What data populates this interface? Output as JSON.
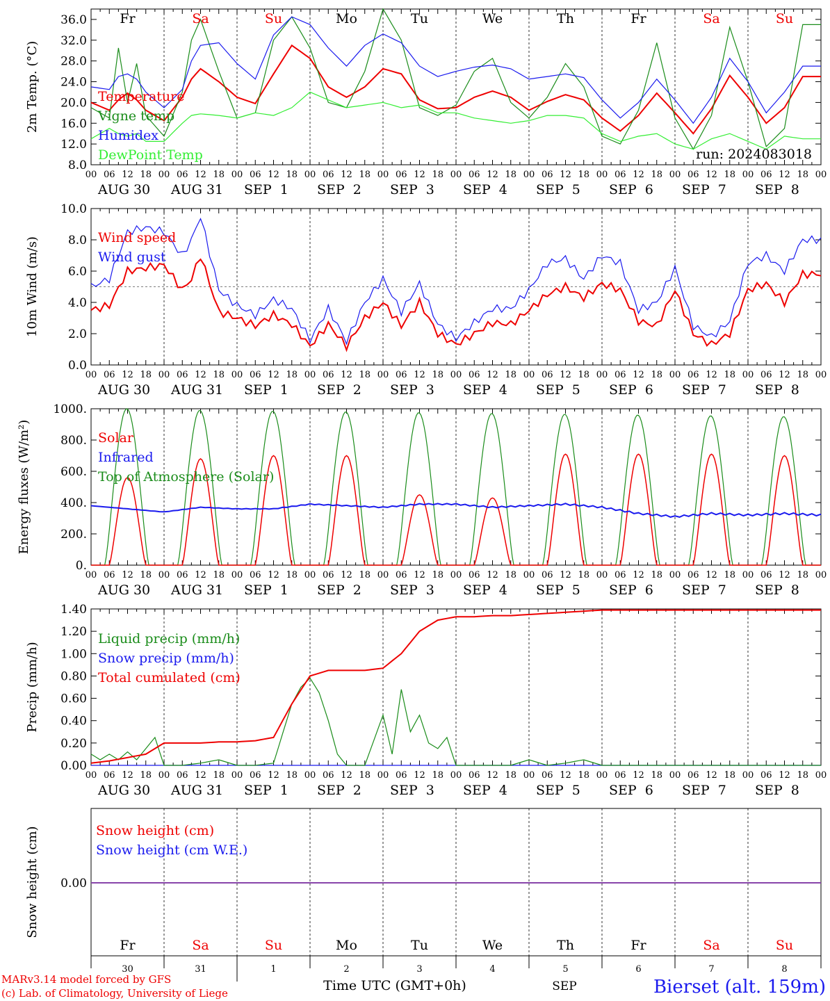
{
  "meta": {
    "model_line1": "MARv3.14 model forced by GFS",
    "model_line2": "(c) Lab. of Climatology, University of Liege",
    "xaxis_title": "Time UTC (GMT+0h)",
    "month_label": "SEP",
    "station": "Bierset (alt. 159m)"
  },
  "colors": {
    "red": "#ee0000",
    "green": "#1a8c1a",
    "blue": "#1a1aee",
    "lightgreen": "#33ee33",
    "purple": "#8844aa",
    "black": "#000000"
  },
  "hour_ticks": [
    "00",
    "06",
    "12",
    "18"
  ],
  "day_labels": [
    "AUG 30",
    "AUG 31",
    "SEP  1",
    "SEP  2",
    "SEP  3",
    "SEP  4",
    "SEP  5",
    "SEP  6",
    "SEP  7",
    "SEP  8"
  ],
  "weekdays": [
    {
      "name": "Fr",
      "weekend": false
    },
    {
      "name": "Sa",
      "weekend": true
    },
    {
      "name": "Su",
      "weekend": true
    },
    {
      "name": "Mo",
      "weekend": false
    },
    {
      "name": "Tu",
      "weekend": false
    },
    {
      "name": "We",
      "weekend": false
    },
    {
      "name": "Th",
      "weekend": false
    },
    {
      "name": "Fr",
      "weekend": false
    },
    {
      "name": "Sa",
      "weekend": true
    },
    {
      "name": "Su",
      "weekend": true
    }
  ],
  "day_numbers": [
    "30",
    "31",
    "1",
    "2",
    "3",
    "4",
    "5",
    "6",
    "7",
    "8"
  ],
  "chart_data": [
    {
      "type": "line",
      "ylabel": "2m Temp. (°C)",
      "ylim": [
        8,
        38
      ],
      "yticks": [
        "36.0",
        "32.0",
        "28.0",
        "24.0",
        "20.0",
        "16.0",
        "12.0",
        "8.0"
      ],
      "run_label": "run: 2024083018",
      "x_hours": [
        0,
        6,
        9,
        12,
        15,
        18,
        24,
        30,
        33,
        36,
        42,
        48,
        54,
        60,
        66,
        72,
        78,
        84,
        90,
        96,
        102,
        108,
        114,
        120,
        126,
        132,
        138,
        144,
        150,
        156,
        162,
        168,
        174,
        180,
        186,
        192,
        198,
        204,
        210,
        216,
        222,
        228,
        234
      ],
      "series": [
        {
          "name": "Temperature",
          "color": "red",
          "values": [
            20.0,
            18.5,
            20.5,
            21.8,
            20.5,
            18.5,
            16.5,
            21.0,
            24.5,
            26.5,
            24.0,
            21.0,
            19.8,
            25.5,
            31.0,
            28.5,
            23.0,
            21.0,
            23.0,
            26.5,
            25.5,
            20.5,
            18.8,
            19.0,
            21.0,
            22.2,
            21.0,
            18.5,
            20.2,
            21.5,
            20.5,
            17.0,
            14.5,
            17.5,
            21.8,
            18.0,
            14.0,
            18.8,
            25.2,
            21.0,
            16.0,
            19.0,
            25.0
          ]
        },
        {
          "name": "Vigne temp",
          "color": "green",
          "values": [
            19.0,
            17.0,
            30.5,
            20.0,
            27.5,
            17.5,
            13.5,
            22.0,
            32.0,
            36.0,
            26.0,
            17.0,
            18.0,
            32.0,
            36.5,
            30.5,
            20.0,
            19.0,
            26.0,
            38.0,
            32.0,
            19.0,
            17.5,
            19.5,
            26.0,
            28.5,
            20.0,
            17.0,
            21.0,
            27.5,
            23.0,
            13.5,
            12.0,
            18.5,
            31.5,
            17.0,
            11.0,
            17.5,
            34.5,
            24.0,
            11.5,
            15.0,
            35.0
          ]
        },
        {
          "name": "Humidex",
          "color": "blue",
          "values": [
            23.0,
            22.5,
            25.0,
            25.5,
            24.5,
            22.0,
            19.0,
            22.5,
            28.0,
            31.0,
            31.5,
            27.5,
            24.5,
            33.0,
            36.5,
            35.0,
            30.5,
            27.0,
            31.0,
            33.2,
            31.5,
            27.0,
            25.0,
            26.0,
            26.8,
            27.2,
            26.5,
            24.5,
            25.0,
            25.5,
            24.8,
            20.5,
            17.0,
            20.0,
            24.5,
            20.5,
            16.0,
            21.0,
            28.5,
            24.0,
            18.0,
            22.0,
            27.0
          ]
        },
        {
          "name": "DewPoint Temp",
          "color": "lightgreen",
          "values": [
            13.0,
            15.0,
            14.0,
            13.5,
            14.0,
            12.5,
            12.5,
            16.0,
            17.5,
            17.8,
            17.5,
            17.0,
            18.0,
            17.5,
            19.0,
            22.0,
            20.5,
            19.0,
            19.5,
            20.0,
            19.0,
            19.5,
            18.0,
            18.0,
            17.0,
            16.5,
            16.0,
            16.5,
            17.5,
            17.5,
            17.0,
            14.0,
            12.5,
            13.5,
            14.0,
            12.0,
            11.0,
            13.0,
            14.0,
            12.5,
            11.0,
            13.5,
            13.0
          ]
        }
      ]
    },
    {
      "type": "line",
      "ylabel": "10m Wind (m/s)",
      "ylim": [
        0,
        10
      ],
      "yticks": [
        "10.0",
        "8.0",
        "6.0",
        "4.0",
        "2.0",
        "0.0"
      ],
      "reference_line": 5.0,
      "x_hours": [
        0,
        6,
        12,
        18,
        24,
        30,
        33,
        36,
        42,
        48,
        54,
        60,
        66,
        72,
        78,
        84,
        90,
        96,
        102,
        108,
        114,
        120,
        126,
        132,
        138,
        144,
        150,
        156,
        162,
        168,
        174,
        180,
        186,
        192,
        198,
        204,
        210,
        216,
        222,
        228,
        234
      ],
      "series": [
        {
          "name": "Wind speed",
          "color": "red",
          "values": [
            3.5,
            3.8,
            6.0,
            6.2,
            6.4,
            4.8,
            5.5,
            7.0,
            3.4,
            3.0,
            2.5,
            3.2,
            2.6,
            1.2,
            2.6,
            1.2,
            3.0,
            4.0,
            2.5,
            4.0,
            2.0,
            1.3,
            2.0,
            2.7,
            2.6,
            3.5,
            4.5,
            5.0,
            4.3,
            5.2,
            4.8,
            2.8,
            2.5,
            4.8,
            2.0,
            1.3,
            2.0,
            4.8,
            5.2,
            4.0,
            5.8
          ]
        },
        {
          "name": "Wind gust",
          "color": "blue",
          "values": [
            5.0,
            5.5,
            8.5,
            8.8,
            8.5,
            7.0,
            8.0,
            9.5,
            4.8,
            3.8,
            3.2,
            4.2,
            3.6,
            1.6,
            3.6,
            1.5,
            4.0,
            5.5,
            3.4,
            5.2,
            2.6,
            1.7,
            2.7,
            3.6,
            3.6,
            4.8,
            6.5,
            6.8,
            5.5,
            7.0,
            6.5,
            3.5,
            4.0,
            6.2,
            2.5,
            1.8,
            2.8,
            6.5,
            7.0,
            6.0,
            8.0
          ]
        }
      ]
    },
    {
      "type": "line",
      "ylabel": "Energy fluxes (W/m²)",
      "ylim": [
        0,
        1000
      ],
      "yticks": [
        "1000.",
        "800.",
        "600.",
        "400.",
        "200.",
        "0."
      ],
      "series": [
        {
          "name": "Solar",
          "color": "red",
          "daily_peak": [
            560,
            680,
            700,
            700,
            450,
            430,
            710,
            710,
            710,
            700
          ]
        },
        {
          "name": "Infrared",
          "color": "blue",
          "x_hours": [
            0,
            12,
            24,
            36,
            48,
            60,
            72,
            84,
            96,
            108,
            120,
            132,
            144,
            156,
            168,
            180,
            192,
            204,
            216,
            228,
            240
          ],
          "values": [
            380,
            360,
            340,
            370,
            360,
            360,
            390,
            380,
            370,
            390,
            390,
            370,
            380,
            390,
            370,
            330,
            310,
            330,
            320,
            330,
            320
          ]
        },
        {
          "name": "Top of Atmosphere (Solar)",
          "color": "green",
          "daily_peak": [
            1000,
            990,
            985,
            980,
            975,
            970,
            965,
            960,
            955,
            950
          ]
        }
      ]
    },
    {
      "type": "line",
      "ylabel": "Precip (mm/h)",
      "ylim": [
        0,
        1.4
      ],
      "yticks": [
        "1.40",
        "1.20",
        "1.00",
        "0.80",
        "0.60",
        "0.40",
        "0.20",
        "0.00"
      ],
      "series": [
        {
          "name": "Liquid precip (mm/h)",
          "color": "green",
          "x_hours": [
            0,
            3,
            6,
            9,
            12,
            15,
            18,
            21,
            24,
            30,
            36,
            42,
            48,
            54,
            60,
            66,
            69,
            72,
            75,
            78,
            81,
            84,
            90,
            96,
            99,
            102,
            105,
            108,
            111,
            114,
            117,
            120,
            126,
            132,
            138,
            144,
            150,
            156,
            162,
            168,
            240
          ],
          "values": [
            0.1,
            0.05,
            0.1,
            0.05,
            0.12,
            0.05,
            0.15,
            0.25,
            0.0,
            0.0,
            0.02,
            0.05,
            0.0,
            0.0,
            0.02,
            0.55,
            0.7,
            0.78,
            0.65,
            0.4,
            0.1,
            0.0,
            0.0,
            0.45,
            0.1,
            0.68,
            0.3,
            0.45,
            0.2,
            0.15,
            0.25,
            0.0,
            0.0,
            0.0,
            0.0,
            0.05,
            0.0,
            0.02,
            0.05,
            0.0,
            0.0
          ]
        },
        {
          "name": "Snow precip (mm/h)",
          "color": "blue",
          "x_hours": [
            0,
            240
          ],
          "values": [
            0,
            0
          ]
        },
        {
          "name": "Total cumulated (cm)",
          "color": "red",
          "x_hours": [
            0,
            6,
            12,
            18,
            24,
            30,
            36,
            42,
            48,
            54,
            60,
            66,
            72,
            78,
            84,
            90,
            96,
            102,
            108,
            114,
            120,
            126,
            132,
            138,
            144,
            150,
            156,
            162,
            168,
            240
          ],
          "values": [
            0.02,
            0.04,
            0.07,
            0.1,
            0.2,
            0.2,
            0.2,
            0.21,
            0.21,
            0.22,
            0.25,
            0.55,
            0.8,
            0.85,
            0.85,
            0.85,
            0.87,
            1.0,
            1.2,
            1.3,
            1.33,
            1.33,
            1.34,
            1.34,
            1.35,
            1.36,
            1.37,
            1.38,
            1.39,
            1.39
          ]
        }
      ]
    },
    {
      "type": "line",
      "ylabel": "Snow height (cm)",
      "yticks": [
        "0.00"
      ],
      "series": [
        {
          "name": "Snow height (cm)",
          "color": "red",
          "values": [
            0,
            0
          ]
        },
        {
          "name": "Snow height (cm W.E.)",
          "color": "blue",
          "values": [
            0,
            0
          ]
        }
      ]
    }
  ]
}
